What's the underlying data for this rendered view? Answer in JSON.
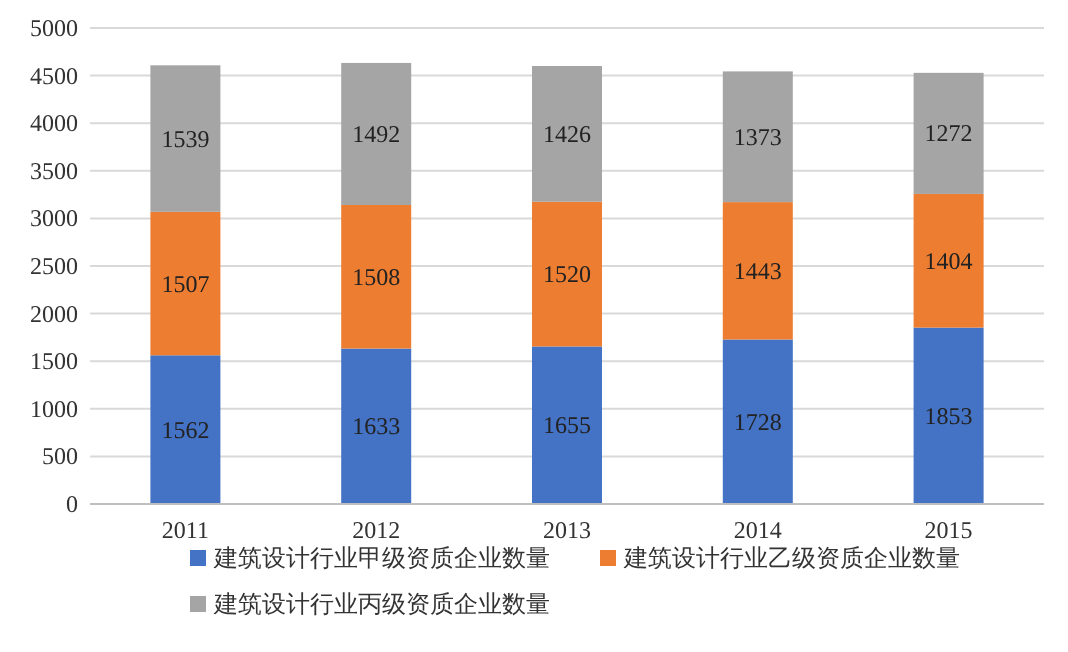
{
  "chart_data": {
    "type": "bar",
    "stacked": true,
    "categories": [
      "2011",
      "2012",
      "2013",
      "2014",
      "2015"
    ],
    "series": [
      {
        "name": "建筑设计行业甲级资质企业数量",
        "color": "#4472c4",
        "values": [
          1562,
          1633,
          1655,
          1728,
          1853
        ]
      },
      {
        "name": "建筑设计行业乙级资质企业数量",
        "color": "#ed7d31",
        "values": [
          1507,
          1508,
          1520,
          1443,
          1404
        ]
      },
      {
        "name": "建筑设计行业丙级资质企业数量",
        "color": "#a5a5a5",
        "values": [
          1539,
          1492,
          1426,
          1373,
          1272
        ]
      }
    ],
    "ylim": [
      0,
      5000
    ],
    "yticks": [
      0,
      500,
      1000,
      1500,
      2000,
      2500,
      3000,
      3500,
      4000,
      4500,
      5000
    ],
    "grid": "y",
    "legend": "bottom",
    "data_labels": true
  }
}
